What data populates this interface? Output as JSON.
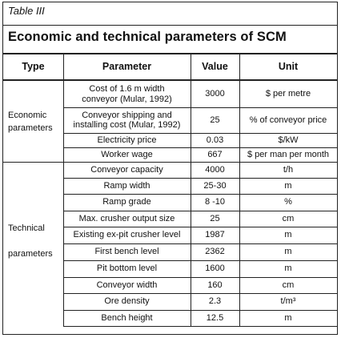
{
  "table_label": "Table III",
  "title": "Economic and technical parameters of SCM",
  "headers": {
    "type": "Type",
    "parameter": "Parameter",
    "value": "Value",
    "unit": "Unit"
  },
  "groups": {
    "economic": "Economic\nparameters",
    "technical": "Technical\n\nparameters"
  },
  "rows": [
    {
      "parameter": "Cost of 1.6 m width\nconveyor (Mular, 1992)",
      "value": "3000",
      "unit": "$ per metre"
    },
    {
      "parameter": "Conveyor shipping and\ninstalling cost (Mular, 1992)",
      "value": "25",
      "unit": "% of conveyor price"
    },
    {
      "parameter": "Electricity price",
      "value": "0.03",
      "unit": "$/kW"
    },
    {
      "parameter": "Worker wage",
      "value": "667",
      "unit": "$ per man per month"
    },
    {
      "parameter": "Conveyor capacity",
      "value": "4000",
      "unit": "t/h"
    },
    {
      "parameter": "Ramp width",
      "value": "25-30",
      "unit": "m"
    },
    {
      "parameter": "Ramp grade",
      "value": "8 -10",
      "unit": "%"
    },
    {
      "parameter": "Max. crusher output size",
      "value": "25",
      "unit": "cm"
    },
    {
      "parameter": "Existing ex-pit crusher level",
      "value": "1987",
      "unit": "m"
    },
    {
      "parameter": "First bench level",
      "value": "2362",
      "unit": "m"
    },
    {
      "parameter": "Pit bottom level",
      "value": "1600",
      "unit": "m"
    },
    {
      "parameter": "Conveyor width",
      "value": "160",
      "unit": "cm"
    },
    {
      "parameter": "Ore density",
      "value": "2.3",
      "unit": "t/m³"
    },
    {
      "parameter": "Bench height",
      "value": "12.5",
      "unit": "m"
    }
  ]
}
